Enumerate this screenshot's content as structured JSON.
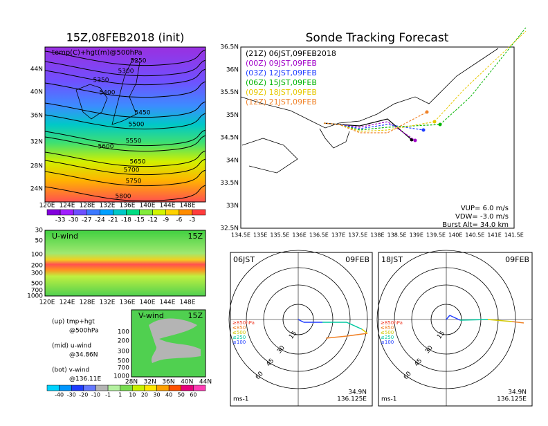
{
  "left": {
    "temp_map": {
      "title": "15Z,08FEB2018 (init)",
      "label": "temp(C)+hgt(m)@500hPa",
      "contours": [
        5250,
        5300,
        5350,
        5400,
        5450,
        5500,
        5550,
        5600,
        5650,
        5700,
        5750,
        5800
      ],
      "lat_labels": [
        "44N",
        "40N",
        "36N",
        "32N",
        "28N",
        "24N"
      ],
      "lon_labels": [
        "120E",
        "124E",
        "128E",
        "132E",
        "136E",
        "140E",
        "144E",
        "148E"
      ],
      "colorbar": [
        -33,
        -30,
        -27,
        -24,
        -21,
        -18,
        -15,
        -12,
        -9,
        -6,
        -3
      ]
    },
    "u_wind": {
      "title": "U-wind",
      "time": "15Z",
      "pressure_labels": [
        30,
        50,
        100,
        200,
        300,
        500,
        700,
        1000
      ],
      "lon_labels": [
        "120E",
        "124E",
        "128E",
        "132E",
        "136E",
        "140E",
        "144E",
        "148E"
      ]
    },
    "v_wind": {
      "title": "V-wind",
      "time": "15Z",
      "pressure_labels": [
        100,
        200,
        300,
        500,
        700,
        1000
      ],
      "lat_labels": [
        "28N",
        "32N",
        "36N",
        "40N",
        "44N"
      ],
      "colorbar": [
        -40,
        -30,
        -20,
        -10,
        -1,
        1,
        10,
        20,
        30,
        40,
        50,
        60
      ]
    },
    "notes": [
      "(up) tmp+hgt",
      "@500hPa",
      "(mid) u-wind",
      "@34.86N",
      "(bot) v-wind",
      "@136.11E"
    ]
  },
  "right": {
    "title": "Sonde Tracking Forecast",
    "legend": [
      {
        "text": "(21Z) 06JST,09FEB2018",
        "color": "#000000"
      },
      {
        "text": "(00Z) 09JST,09FEB",
        "color": "#a000c8"
      },
      {
        "text": "(03Z) 12JST,09FEB",
        "color": "#1e3cff"
      },
      {
        "text": "(06Z) 15JST,09FEB",
        "color": "#00b400"
      },
      {
        "text": "(09Z) 18JST,09FEB",
        "color": "#e6c800"
      },
      {
        "text": "(12Z) 21JST,09FEB",
        "color": "#f08228"
      }
    ],
    "lat_labels": [
      "36.5N",
      "36N",
      "35.5N",
      "35N",
      "34.5N",
      "34N",
      "33.5N",
      "33N",
      "32.5N"
    ],
    "lon_labels": [
      "134.5E",
      "135E",
      "135.5E",
      "136E",
      "136.5E",
      "137E",
      "137.5E",
      "138E",
      "138.5E",
      "139E",
      "139.5E",
      "140E",
      "140.5E",
      "141E",
      "141.5E"
    ],
    "params": [
      "VUP= 6.0 m/s",
      "VDW= -3.0 m/s",
      "Burst Alt= 34.0 km"
    ]
  },
  "hodographs": [
    {
      "time": "06JST",
      "date": "09FEB"
    },
    {
      "time": "18JST",
      "date": "09FEB"
    }
  ],
  "hodo_common": {
    "levels": [
      {
        "text": "≥850hPa",
        "color": "#f03c28"
      },
      {
        "text": "≤850",
        "color": "#f08228"
      },
      {
        "text": "≤500",
        "color": "#d2c800"
      },
      {
        "text": "≤250",
        "color": "#00c8a0"
      },
      {
        "text": "≤100",
        "color": "#1e3cff"
      }
    ],
    "rings": [
      15,
      30,
      45,
      60
    ],
    "lat": "34.9N",
    "lon": "136.125E",
    "unit": "ms-1"
  }
}
